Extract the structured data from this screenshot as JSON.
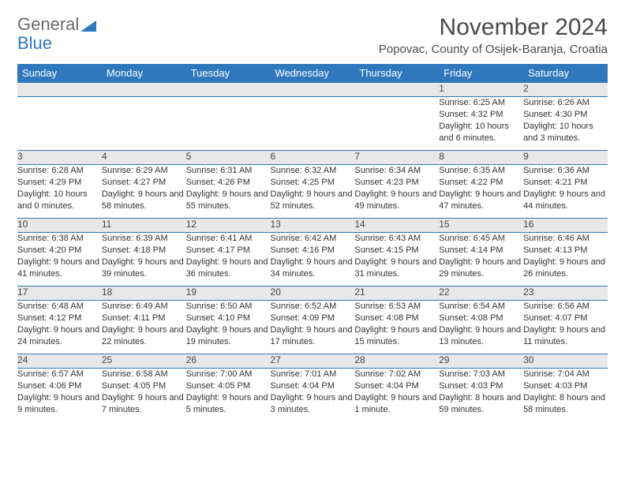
{
  "brand": {
    "part1": "General",
    "part2": "Blue"
  },
  "title": "November 2024",
  "location": "Popovac, County of Osijek-Baranja, Croatia",
  "dayHeaders": [
    "Sunday",
    "Monday",
    "Tuesday",
    "Wednesday",
    "Thursday",
    "Friday",
    "Saturday"
  ],
  "colors": {
    "headerBg": "#2f78bd",
    "headerText": "#ffffff",
    "rowBorder": "#2f78bd",
    "dayBg": "#e8e8e8",
    "text": "#333333",
    "pageBg": "#ffffff"
  },
  "weeks": [
    [
      null,
      null,
      null,
      null,
      null,
      {
        "n": "1",
        "sr": "6:25 AM",
        "ss": "4:32 PM",
        "dl": "10 hours and 6 minutes."
      },
      {
        "n": "2",
        "sr": "6:26 AM",
        "ss": "4:30 PM",
        "dl": "10 hours and 3 minutes."
      }
    ],
    [
      {
        "n": "3",
        "sr": "6:28 AM",
        "ss": "4:29 PM",
        "dl": "10 hours and 0 minutes."
      },
      {
        "n": "4",
        "sr": "6:29 AM",
        "ss": "4:27 PM",
        "dl": "9 hours and 58 minutes."
      },
      {
        "n": "5",
        "sr": "6:31 AM",
        "ss": "4:26 PM",
        "dl": "9 hours and 55 minutes."
      },
      {
        "n": "6",
        "sr": "6:32 AM",
        "ss": "4:25 PM",
        "dl": "9 hours and 52 minutes."
      },
      {
        "n": "7",
        "sr": "6:34 AM",
        "ss": "4:23 PM",
        "dl": "9 hours and 49 minutes."
      },
      {
        "n": "8",
        "sr": "6:35 AM",
        "ss": "4:22 PM",
        "dl": "9 hours and 47 minutes."
      },
      {
        "n": "9",
        "sr": "6:36 AM",
        "ss": "4:21 PM",
        "dl": "9 hours and 44 minutes."
      }
    ],
    [
      {
        "n": "10",
        "sr": "6:38 AM",
        "ss": "4:20 PM",
        "dl": "9 hours and 41 minutes."
      },
      {
        "n": "11",
        "sr": "6:39 AM",
        "ss": "4:18 PM",
        "dl": "9 hours and 39 minutes."
      },
      {
        "n": "12",
        "sr": "6:41 AM",
        "ss": "4:17 PM",
        "dl": "9 hours and 36 minutes."
      },
      {
        "n": "13",
        "sr": "6:42 AM",
        "ss": "4:16 PM",
        "dl": "9 hours and 34 minutes."
      },
      {
        "n": "14",
        "sr": "6:43 AM",
        "ss": "4:15 PM",
        "dl": "9 hours and 31 minutes."
      },
      {
        "n": "15",
        "sr": "6:45 AM",
        "ss": "4:14 PM",
        "dl": "9 hours and 29 minutes."
      },
      {
        "n": "16",
        "sr": "6:46 AM",
        "ss": "4:13 PM",
        "dl": "9 hours and 26 minutes."
      }
    ],
    [
      {
        "n": "17",
        "sr": "6:48 AM",
        "ss": "4:12 PM",
        "dl": "9 hours and 24 minutes."
      },
      {
        "n": "18",
        "sr": "6:49 AM",
        "ss": "4:11 PM",
        "dl": "9 hours and 22 minutes."
      },
      {
        "n": "19",
        "sr": "6:50 AM",
        "ss": "4:10 PM",
        "dl": "9 hours and 19 minutes."
      },
      {
        "n": "20",
        "sr": "6:52 AM",
        "ss": "4:09 PM",
        "dl": "9 hours and 17 minutes."
      },
      {
        "n": "21",
        "sr": "6:53 AM",
        "ss": "4:08 PM",
        "dl": "9 hours and 15 minutes."
      },
      {
        "n": "22",
        "sr": "6:54 AM",
        "ss": "4:08 PM",
        "dl": "9 hours and 13 minutes."
      },
      {
        "n": "23",
        "sr": "6:56 AM",
        "ss": "4:07 PM",
        "dl": "9 hours and 11 minutes."
      }
    ],
    [
      {
        "n": "24",
        "sr": "6:57 AM",
        "ss": "4:06 PM",
        "dl": "9 hours and 9 minutes."
      },
      {
        "n": "25",
        "sr": "6:58 AM",
        "ss": "4:05 PM",
        "dl": "9 hours and 7 minutes."
      },
      {
        "n": "26",
        "sr": "7:00 AM",
        "ss": "4:05 PM",
        "dl": "9 hours and 5 minutes."
      },
      {
        "n": "27",
        "sr": "7:01 AM",
        "ss": "4:04 PM",
        "dl": "9 hours and 3 minutes."
      },
      {
        "n": "28",
        "sr": "7:02 AM",
        "ss": "4:04 PM",
        "dl": "9 hours and 1 minute."
      },
      {
        "n": "29",
        "sr": "7:03 AM",
        "ss": "4:03 PM",
        "dl": "8 hours and 59 minutes."
      },
      {
        "n": "30",
        "sr": "7:04 AM",
        "ss": "4:03 PM",
        "dl": "8 hours and 58 minutes."
      }
    ]
  ]
}
